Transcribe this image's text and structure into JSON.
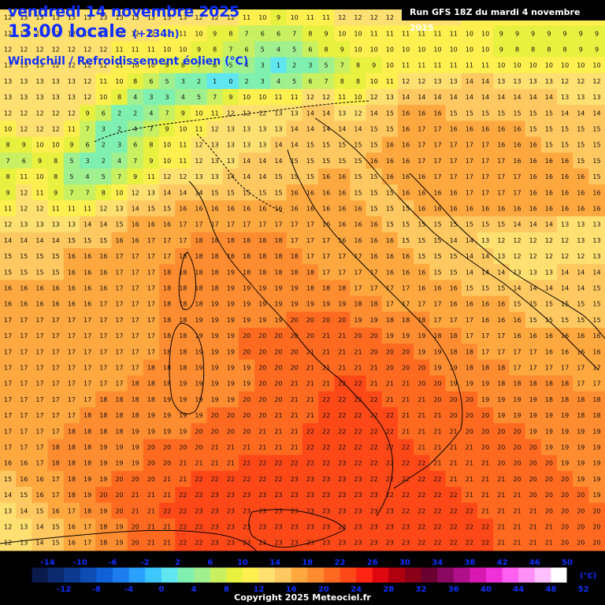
{
  "header": {
    "date": "vendredi 14 novembre 2025",
    "time": "13:00 locale",
    "offset": "(+234h)",
    "variable": "Windchill / Refroidissement éolien (°C)",
    "run": "Run GFS 18Z du mardi 4 novembre 2025"
  },
  "legend": {
    "unit": "(°C)",
    "labels_top": [
      "-14",
      "-10",
      "-6",
      "-2",
      "2",
      "6",
      "10",
      "14",
      "18",
      "22",
      "26",
      "30",
      "34",
      "38",
      "42",
      "46",
      "50"
    ],
    "labels_bottom": [
      "-12",
      "-8",
      "-4",
      "0",
      "4",
      "8",
      "12",
      "16",
      "20",
      "24",
      "28",
      "32",
      "36",
      "40",
      "44",
      "48",
      "52"
    ],
    "colors": [
      "#0a1a4a",
      "#0b2a6e",
      "#0c3a90",
      "#0e4cb3",
      "#1060d8",
      "#1c7cf0",
      "#2aa0ff",
      "#3cc8ff",
      "#5fe6ee",
      "#80f0b0",
      "#a0f090",
      "#c8f060",
      "#e8f040",
      "#fff050",
      "#ffe070",
      "#ffc860",
      "#ffa840",
      "#ff8c30",
      "#ff6a20",
      "#ff4818",
      "#ff2414",
      "#e00810",
      "#b00010",
      "#8a0018",
      "#6a0030",
      "#8a0860",
      "#b0108a",
      "#d818b0",
      "#f030d8",
      "#ff60f0",
      "#ff90f8",
      "#ffc0ff",
      "#ffffff"
    ],
    "color_min": -14,
    "color_step": 2
  },
  "map": {
    "values": [
      "12 13 13 13 13 13 13 13 13 13 13 13 12 12 12 11 10  9 10 11 11 12 12 12 12 12 12 12 12 11 11 10 10 10 10 10 10 10",
      "12 12 12 12 12 12 12 12 12 12 11 11 10  9  8  7  6  6  7  8  9 10 10 11 11 11 11 11 11 10 10  9  9  9  9  9  9  9",
      "12 12 12 12 12 12 12 11 11 11 10 10  9  8  7  6  5  4  5  6  8  9 10 10 10 10 10 10 10 10 10  9  8  8  8  8  9  9",
      "13 13 13 12 12 12 12 11 10 10  9  8  7  6  5  4  3  1  2  3  5  7  8  9 10 11 11 11 11 11 11 10 10 10 10 10 10 10",
      "13 13 13 13 13 12 11 10  8  6  5  3  2  1  0  2  3  4  5  6  7  8  8 10 11 12 12 13 13 14 14 13 13 13 13 12 12 12",
      "13 13 13 13 13 12 10  8  4  3  3  4  5  7  9 10 10 11 11 12 12 11 10 12 13 14 14 14 14 14 14 14 14 14 14 13 13 13",
      "12 12 12 12 12  9  6  2  2  4  7  9 10 11 12 12 12 13 13 14 14 13 12 14 15 16 16 16 15 15 15 15 15 15 15 14 14 14",
      "10 12 12 12 11  7  3  2  4  7  9 10 11 12 13 13 13 13 14 14 14 14 14 15 15 16 17 17 16 16 16 16 16 15 15 15 15 15",
      " 8  9 10 10  9  6  2  3  6  8 10 11 12 13 13 13 13 14 14 15 15 15 15 15 16 16 17 17 17 17 17 16 16 16 15 15 15 15",
      " 7  6  9  8  5  3  2  4  7  9 10 11 12 13 13 14 14 14 15 15 15 15 15 16 16 16 17 17 17 17 17 17 16 16 16 16 15 15",
      " 8 11 10  8  5  4  5  7  9 11 12 12 13 13 14 14 14 15 15 15 16 16 15 15 16 16 16 17 17 17 17 17 17 16 16 16 16 15",
      " 9 12 11  9  7  7  8 10 12 13 14 14 14 15 15 15 15 15 16 16 16 16 15 15 15 16 16 16 16 17 17 17 17 16 16 16 16 16",
      "11 12 12 11 11 11 12 13 14 15 15 16 16 16 16 16 16 16 16 16 16 16 16 15 15 15 16 16 16 16 16 16 16 16 16 16 16 16",
      "12 13 13 13 13 14 14 15 16 16 16 17 17 17 17 17 17 17 17 17 16 16 16 16 15 15 15 15 15 15 15 15 14 14 14 13 13 13",
      "14 14 14 14 15 15 15 16 16 17 17 17 18 18 18 18 18 18 17 17 17 16 16 16 16 15 15 15 14 14 13 12 12 12 12 12 13 13",
      "15 15 15 15 16 16 16 17 17 17 17 18 18 18 18 18 18 18 18 17 17 17 17 16 16 16 15 15 15 14 14 13 12 12 12 12 12 13",
      "15 15 15 15 16 16 16 17 17 17 18 18 18 18 19 18 18 18 18 18 17 17 17 17 16 16 16 15 15 14 14 14 13 13 13 14 14 14",
      "16 16 16 16 16 16 16 17 17 17 18 18 18 18 19 19 19 19 19 18 18 18 17 17 17 17 16 16 16 15 15 15 14 14 14 14 14 15",
      "16 16 16 16 16 16 17 17 17 17 18 18 18 19 19 19 19 19 19 19 19 19 18 18 17 17 17 17 16 16 16 16 15 15 15 15 15 15",
      "17 17 17 17 17 17 17 17 17 17 18 18 19 19 19 19 19 19 20 20 20 20 19 19 18 18 18 17 17 17 16 16 16 15 15 15 15 15",
      "17 17 17 17 17 17 17 17 17 17 18 18 19 19 19 20 20 20 20 20 21 21 20 20 19 19 19 18 18 17 17 17 16 16 16 16 16 16",
      "17 17 17 17 17 17 17 17 17 17 18 18 19 19 19 20 20 20 20 21 21 21 21 20 20 20 19 19 18 18 17 17 17 17 16 16 16 16",
      "17 17 17 17 17 17 17 17 17 18 18 18 19 19 19 19 20 20 20 21 21 21 21 21 20 20 20 19 19 18 18 18 17 17 17 17 17 17",
      "17 17 17 17 17 17 17 17 18 18 18 19 19 19 19 19 20 20 21 21 21 22 22 21 21 21 20 20 19 19 19 18 18 18 18 18 17 17",
      "17 17 17 17 17 17 18 18 18 18 19 19 19 19 19 20 20 20 21 21 22 22 22 22 21 21 21 20 20 20 19 19 19 19 18 18 18 18",
      "17 17 17 17 17 18 18 18 18 19 19 19 19 20 20 20 20 21 21 21 22 22 22 22 22 21 21 21 20 20 20 19 19 19 19 19 18 18",
      "17 17 17 17 18 18 18 18 19 19 19 19 20 20 20 20 21 21 21 22 22 22 22 22 22 21 21 21 21 20 20 20 20 19 19 19 19 19",
      "17 17 17 18 18 18 19 19 19 20 20 20 20 21 21 21 21 21 21 22 22 22 22 22 22 22 21 21 21 21 20 20 20 20 19 19 19 19",
      "16 16 17 18 18 18 19 19 19 20 20 21 21 21 21 22 22 22 22 22 22 23 22 22 22 22 22 21 21 21 21 20 20 20 20 19 19 19",
      "15 16 16 17 18 19 19 20 20 20 21 21 22 22 22 22 22 22 23 23 23 23 23 22 22 22 22 22 21 21 21 21 20 20 20 20 19 19",
      "14 15 16 17 18 19 20 20 21 21 21 22 22 23 23 23 23 23 23 23 23 23 23 23 22 22 22 22 22 21 21 21 21 20 20 20 20 19",
      "13 14 15 16 17 18 19 20 21 21 22 22 23 23 23 23 23 23 23 23 23 23 23 23 23 22 22 22 22 22 21 21 21 21 20 20 20 20",
      "12 13 14 15 16 17 18 19 20 21 21 22 22 23 23 23 23 23 23 23 23 23 23 23 23 23 22 22 22 22 22 21 21 21 21 20 20 20",
      "12 13 14 15 16 17 18 19 20 21 21 22 22 23 23 23 23 23 23 23 23 23 23 23 23 23 22 22 22 22 22 21 21 21 21 20 20 20"
    ]
  },
  "copyright": "Copyright 2025 Meteociel.fr"
}
